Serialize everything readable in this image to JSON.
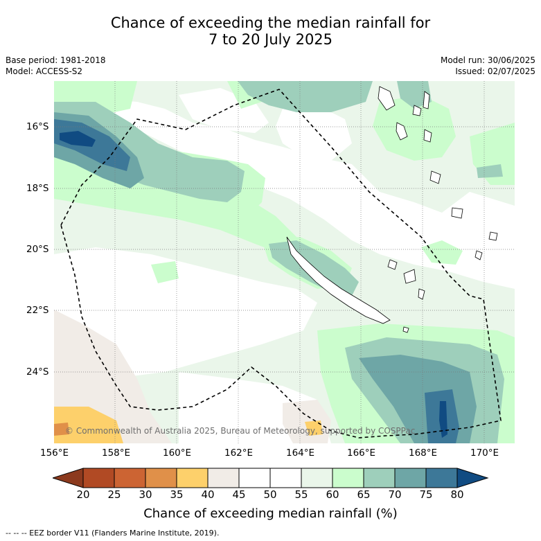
{
  "title_line1": "Chance of exceeding the median rainfall for",
  "title_line2": "7 to 20 July 2025",
  "base_period": "Base period: 1981-2018",
  "model": "Model: ACCESS-S2",
  "model_run": "Model run: 30/06/2025",
  "issued": "Issued: 02/07/2025",
  "copyright": "© Commonwealth of Australia 2025, Bureau of Meteorology, supported by COSPPac",
  "lat_labels": [
    "16°S",
    "18°S",
    "20°S",
    "22°S",
    "24°S"
  ],
  "lon_labels": [
    "156°E",
    "158°E",
    "160°E",
    "162°E",
    "164°E",
    "166°E",
    "168°E",
    "170°E"
  ],
  "colorbar": {
    "title": "Chance of exceeding median rainfall (%)",
    "ticks": [
      "20",
      "25",
      "30",
      "35",
      "40",
      "45",
      "50",
      "55",
      "60",
      "65",
      "70",
      "75",
      "80"
    ],
    "colors": [
      "#8c3a1e",
      "#b14a24",
      "#cc6433",
      "#e09049",
      "#fdd06b",
      "#f1ece7",
      "#ffffff",
      "#ffffff",
      "#eaf6ea",
      "#cbfdcd",
      "#9ecfbb",
      "#6ea6a6",
      "#3d7898",
      "#104b82"
    ]
  },
  "legend_footnote": "--  --  -- EEZ border V11 (Flanders Marine Institute, 2019)."
}
